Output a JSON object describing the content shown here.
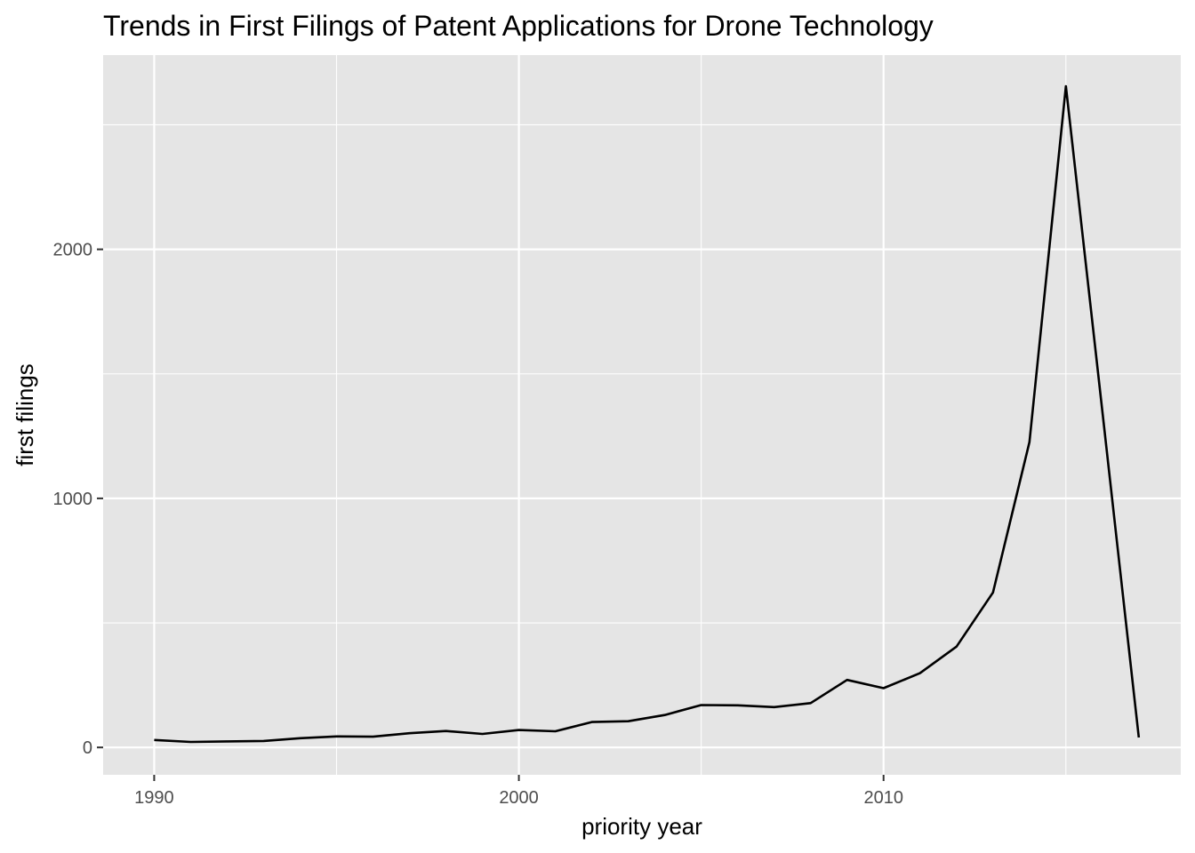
{
  "chart_data": {
    "type": "line",
    "title": "Trends in First Filings of Patent Applications for Drone Technology",
    "xlabel": "priority year",
    "ylabel": "first filings",
    "xlim": [
      1988.6,
      2018.15
    ],
    "ylim": [
      -110,
      2780
    ],
    "x_ticks": [
      1990,
      2000,
      2010
    ],
    "x_minor": [
      1995,
      2005,
      2015
    ],
    "y_ticks": [
      0,
      1000,
      2000
    ],
    "y_minor": [
      500,
      1500,
      2500
    ],
    "grid": true,
    "legend": "none",
    "panel_color": "#e5e5e5",
    "grid_color": "#ffffff",
    "line_color": "#000000",
    "series": [
      {
        "x": [
          1990,
          1991,
          1992,
          1993,
          1994,
          1995,
          1996,
          1997,
          1998,
          1999,
          2000,
          2001,
          2002,
          2003,
          2004,
          2005,
          2006,
          2007,
          2008,
          2009,
          2010,
          2011,
          2012,
          2013,
          2014,
          2015,
          2016,
          2017
        ],
        "y": [
          30,
          22,
          24,
          26,
          37,
          44,
          43,
          57,
          66,
          54,
          70,
          65,
          102,
          105,
          130,
          170,
          169,
          162,
          178,
          271,
          238,
          298,
          405,
          622,
          1226,
          2655,
          1350,
          40
        ]
      }
    ]
  }
}
